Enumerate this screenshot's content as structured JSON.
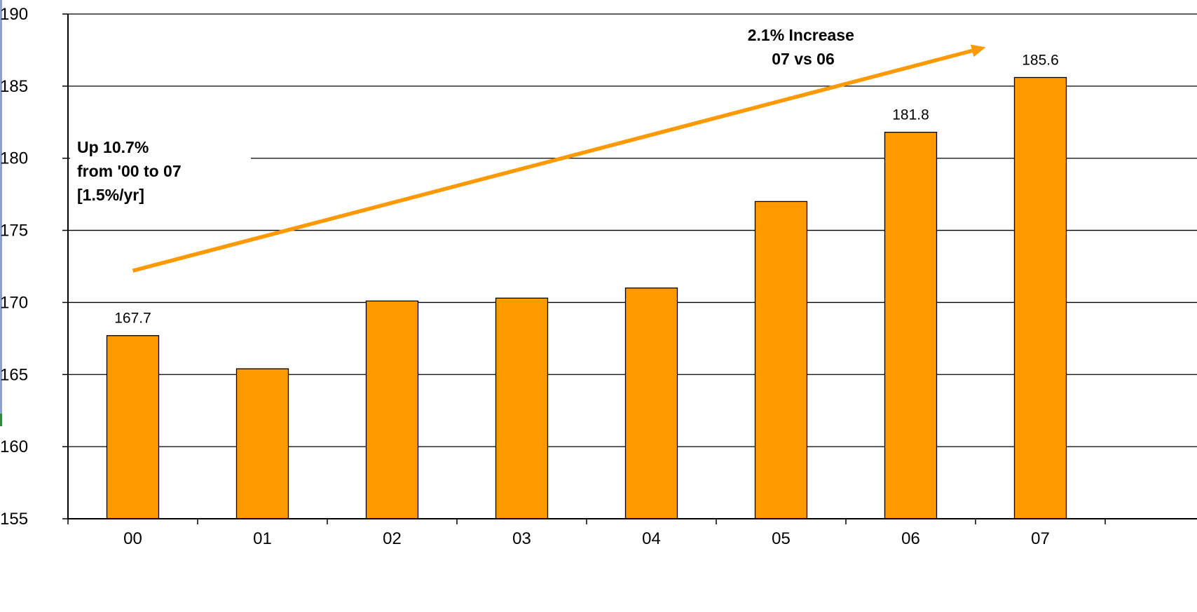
{
  "chart_data": {
    "type": "bar",
    "categories": [
      "00",
      "01",
      "02",
      "03",
      "04",
      "05",
      "06",
      "07"
    ],
    "values": [
      167.7,
      165.4,
      170.1,
      170.3,
      171.0,
      177.0,
      181.8,
      185.6
    ],
    "data_labels": [
      "167.7",
      "",
      "",
      "",
      "",
      "",
      "181.8",
      "185.6"
    ],
    "ylim": [
      155,
      190
    ],
    "yticks": [
      "155",
      "160",
      "165",
      "170",
      "175",
      "180",
      "185",
      "190"
    ],
    "grid": true,
    "colors": {
      "bar": "#FF9900",
      "bar_outline": "#000000",
      "trend_arrow": "#FF9900",
      "left_edge_accent": "#8EA1C9",
      "left_edge_accent_bottom": "#2E8B3E"
    },
    "annotations": {
      "growth_note": [
        "Up 10.7%",
        "from '00 to 07",
        "[1.5%/yr]"
      ],
      "increase_note": [
        "2.1% Increase",
        "07 vs 06"
      ]
    },
    "trend_arrow": {
      "from": {
        "category": "00",
        "y": 172.2
      },
      "to": {
        "category": "07",
        "y": 187.7
      }
    }
  }
}
